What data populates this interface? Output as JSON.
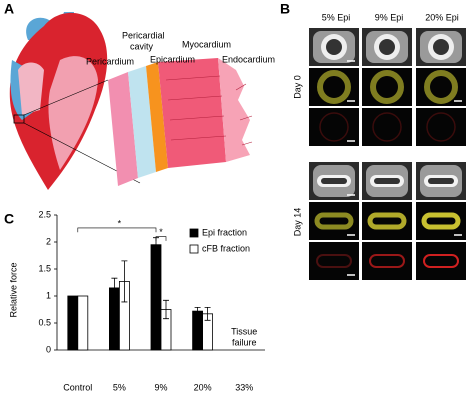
{
  "panels": {
    "a": "A",
    "b": "B",
    "c": "C"
  },
  "heart": {
    "layers": [
      "Pericardium",
      [
        "Pericardial",
        "cavity"
      ],
      "Epicardium",
      "Myocardium",
      "Endocardium"
    ]
  },
  "images": {
    "columns": [
      "5% Epi",
      "9% Epi",
      "20% Epi"
    ],
    "rows": [
      "Day 0",
      "Day 14"
    ]
  },
  "chart_data": {
    "type": "bar",
    "ylabel": "Relative force",
    "categories": [
      "Control",
      "5%",
      "9%",
      "20%",
      "33%"
    ],
    "series": [
      {
        "name": "Epi fraction",
        "color": "#000000",
        "values": [
          1,
          1.15,
          1.95,
          0.72,
          null
        ],
        "errors": [
          0,
          0.18,
          0.13,
          0.07,
          null
        ]
      },
      {
        "name": "cFB fraction",
        "color": "#ffffff",
        "values": [
          1,
          1.27,
          0.75,
          0.67,
          null
        ],
        "errors": [
          0,
          0.38,
          0.17,
          0.12,
          null
        ]
      }
    ],
    "ylim": [
      0,
      2.5
    ],
    "yticks": [
      0,
      0.5,
      1,
      1.5,
      2,
      2.5
    ],
    "annotations": [
      "*",
      "*",
      [
        "Tissue",
        "failure"
      ]
    ],
    "legend": "upper right"
  }
}
